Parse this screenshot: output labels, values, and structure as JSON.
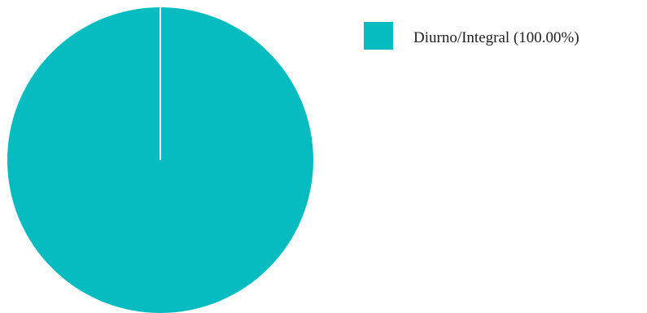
{
  "chart_data": {
    "type": "pie",
    "title": "",
    "slices": [
      {
        "label": "Diurno/Integral",
        "value": 100.0,
        "color": "#06BCC1"
      }
    ],
    "legend": {
      "position": "top-right",
      "entries": [
        "Diurno/Integral (100.00%)"
      ]
    }
  }
}
